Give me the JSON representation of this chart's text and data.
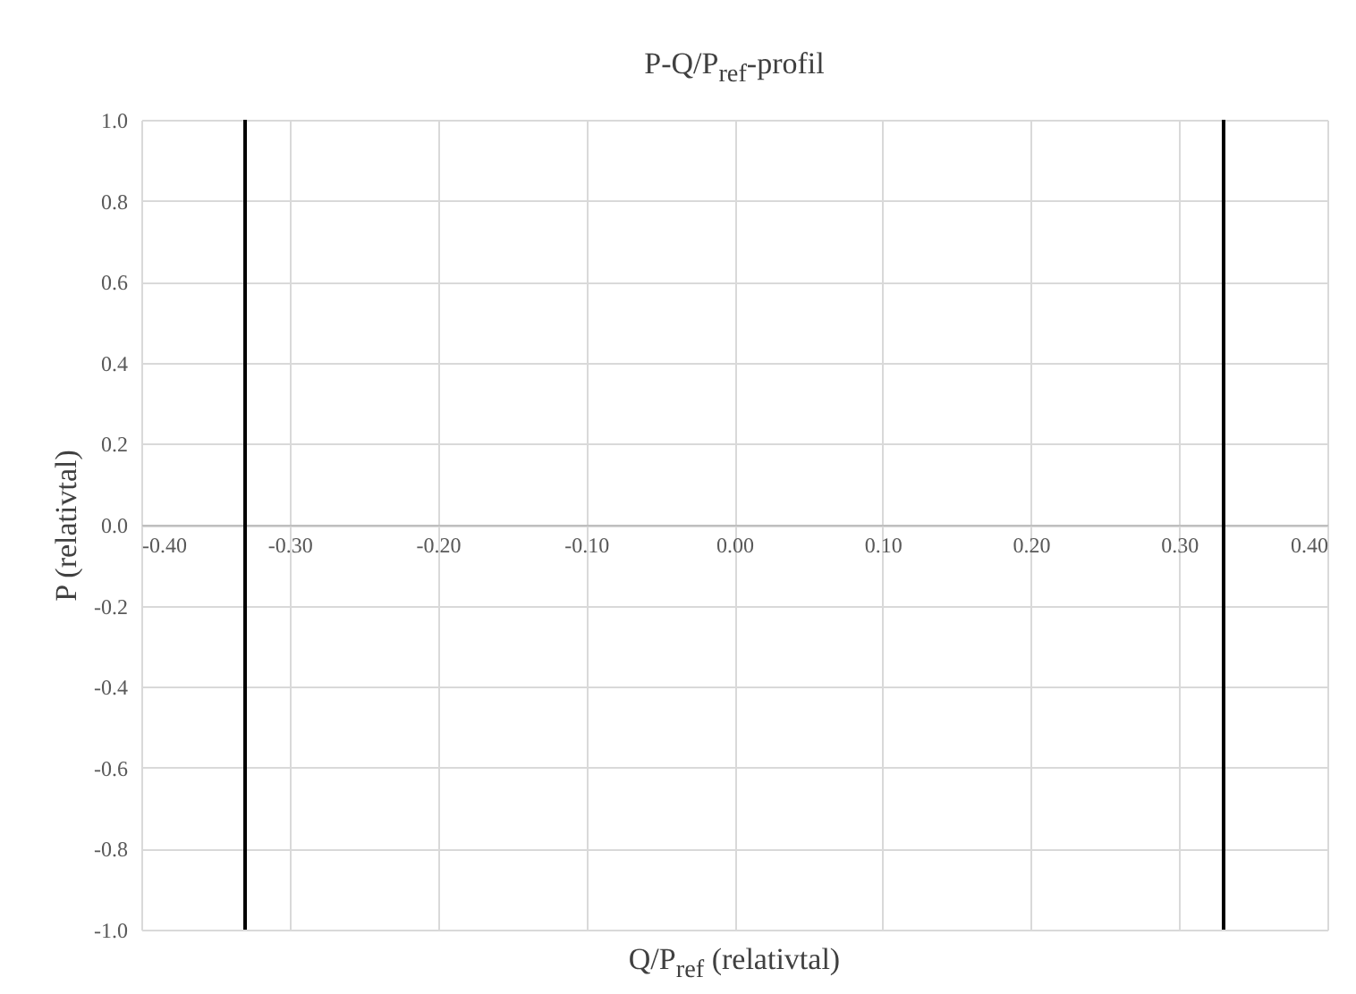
{
  "chart_data": {
    "type": "line",
    "title": "P-Q/P$_{ref}$-profil",
    "xlabel": "Q/P$_{ref}$ (relativtal)",
    "ylabel": "P (relativtal)",
    "xlim": [
      -0.4,
      0.4
    ],
    "xticks": [
      {
        "value": -0.4,
        "label": "-0.40"
      },
      {
        "value": -0.3,
        "label": "-0.30"
      },
      {
        "value": -0.2,
        "label": "-0.20"
      },
      {
        "value": -0.1,
        "label": "-0.10"
      },
      {
        "value": 0,
        "label": "0.00"
      },
      {
        "value": 0.1,
        "label": "0.10"
      },
      {
        "value": 0.2,
        "label": "0.20"
      },
      {
        "value": 0.3,
        "label": "0.30"
      },
      {
        "value": 0.4,
        "label": "0.40"
      }
    ],
    "ylim": [
      -1,
      1
    ],
    "yticks": [
      {
        "value": -1,
        "label": "-1.0"
      },
      {
        "value": -0.8,
        "label": "-0.8"
      },
      {
        "value": -0.6,
        "label": "-0.6"
      },
      {
        "value": -0.4,
        "label": "-0.4"
      },
      {
        "value": -0.2,
        "label": "-0.2"
      },
      {
        "value": 0,
        "label": "0.0"
      },
      {
        "value": 0.2,
        "label": "0.2"
      },
      {
        "value": 0.4,
        "label": "0.4"
      },
      {
        "value": 0.6,
        "label": "0.6"
      },
      {
        "value": 0.8,
        "label": "0.8"
      },
      {
        "value": 1,
        "label": "1.0"
      }
    ],
    "grid": true,
    "ref_lines": [
      {
        "axis": "x",
        "value": -0.33,
        "color": "#000000"
      },
      {
        "axis": "x",
        "value": 0.33,
        "color": "#000000"
      }
    ]
  }
}
